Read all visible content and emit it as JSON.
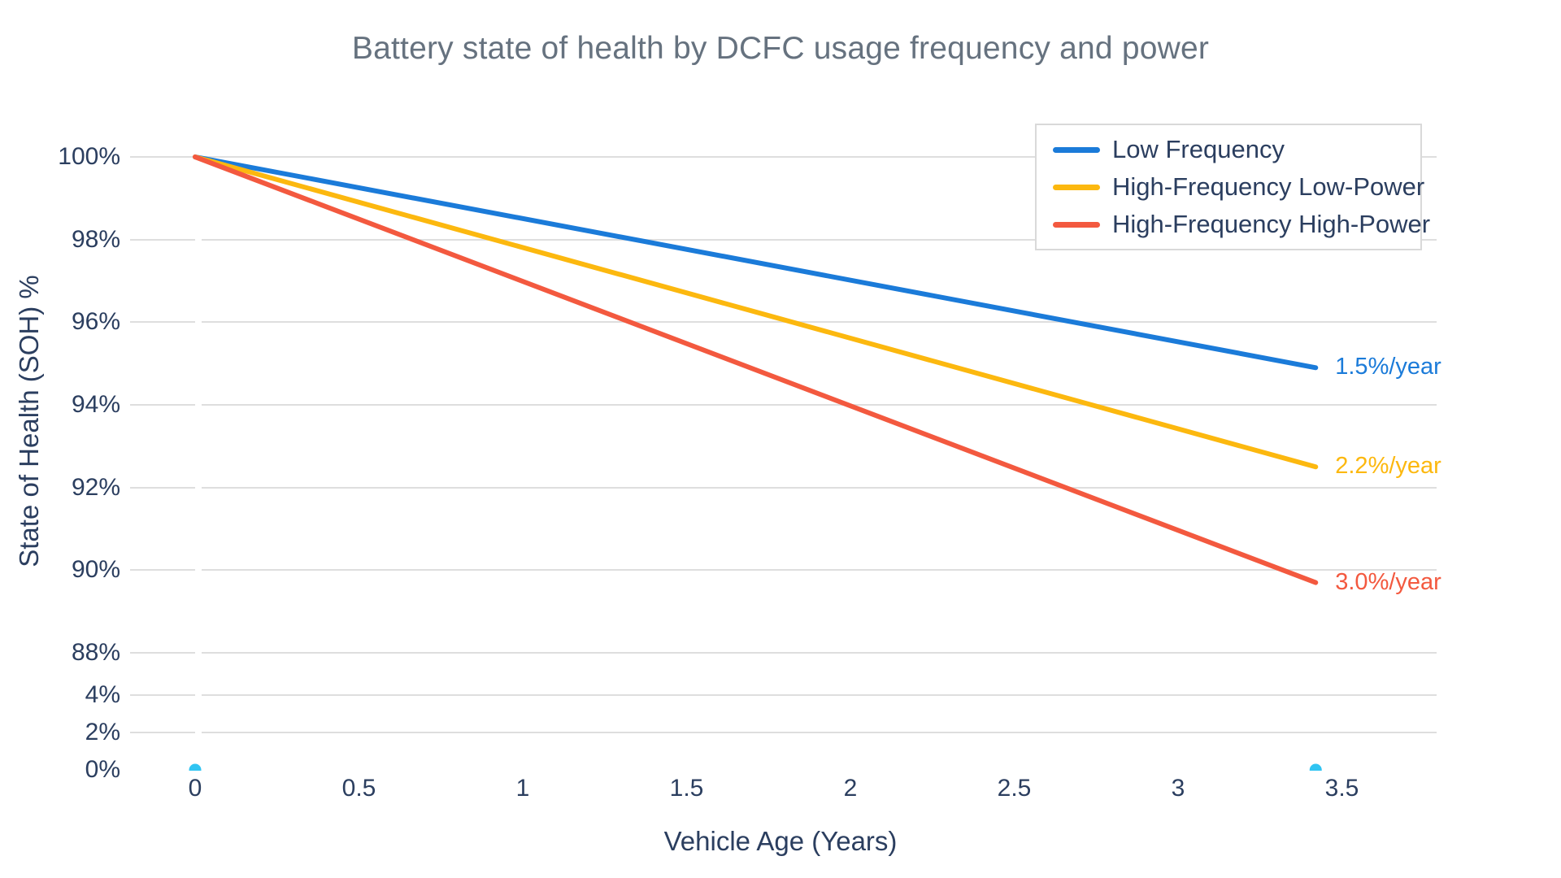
{
  "chart_data": {
    "type": "line",
    "title": "Battery state of health by DCFC usage frequency and power",
    "xlabel": "Vehicle Age (Years)",
    "ylabel": "State of Health (SOH) %",
    "grid": true,
    "legend_position": "top-right",
    "x_range": [
      0,
      3.8
    ],
    "x_ticks": [
      {
        "label": "0",
        "value": 0
      },
      {
        "label": "0.5",
        "value": 0.5
      },
      {
        "label": "1",
        "value": 1
      },
      {
        "label": "1.5",
        "value": 1.5
      },
      {
        "label": "2",
        "value": 2
      },
      {
        "label": "2.5",
        "value": 2.5
      },
      {
        "label": "3",
        "value": 3
      },
      {
        "label": "3.5",
        "value": 3.5
      }
    ],
    "y_axis_break": "axis shows 0–4% then jumps to 88–100%",
    "y_ticks": [
      {
        "label": "100%",
        "value": 100
      },
      {
        "label": "98%",
        "value": 98
      },
      {
        "label": "96%",
        "value": 96
      },
      {
        "label": "94%",
        "value": 94
      },
      {
        "label": "92%",
        "value": 92
      },
      {
        "label": "90%",
        "value": 90
      },
      {
        "label": "88%",
        "value": 88
      },
      {
        "label": "4%",
        "value": 4
      },
      {
        "label": "2%",
        "value": 2
      },
      {
        "label": "0%",
        "value": 0
      }
    ],
    "series": [
      {
        "name": "Low Frequency",
        "color": "#1b7bd9",
        "rate_label": "1.5%/year",
        "x": [
          0,
          3.42
        ],
        "y": [
          100,
          94.9
        ]
      },
      {
        "name": "High-Frequency Low-Power",
        "color": "#fcb80f",
        "rate_label": "2.2%/year",
        "x": [
          0,
          3.42
        ],
        "y": [
          100,
          92.5
        ]
      },
      {
        "name": "High-Frequency High-Power",
        "color": "#f3593f",
        "rate_label": "3.0%/year",
        "x": [
          0,
          3.42
        ],
        "y": [
          100,
          89.7
        ]
      }
    ],
    "markers": {
      "color": "#30c4f2",
      "points": [
        {
          "x": 0,
          "y": 0
        },
        {
          "x": 3.42,
          "y": 0
        }
      ]
    }
  }
}
